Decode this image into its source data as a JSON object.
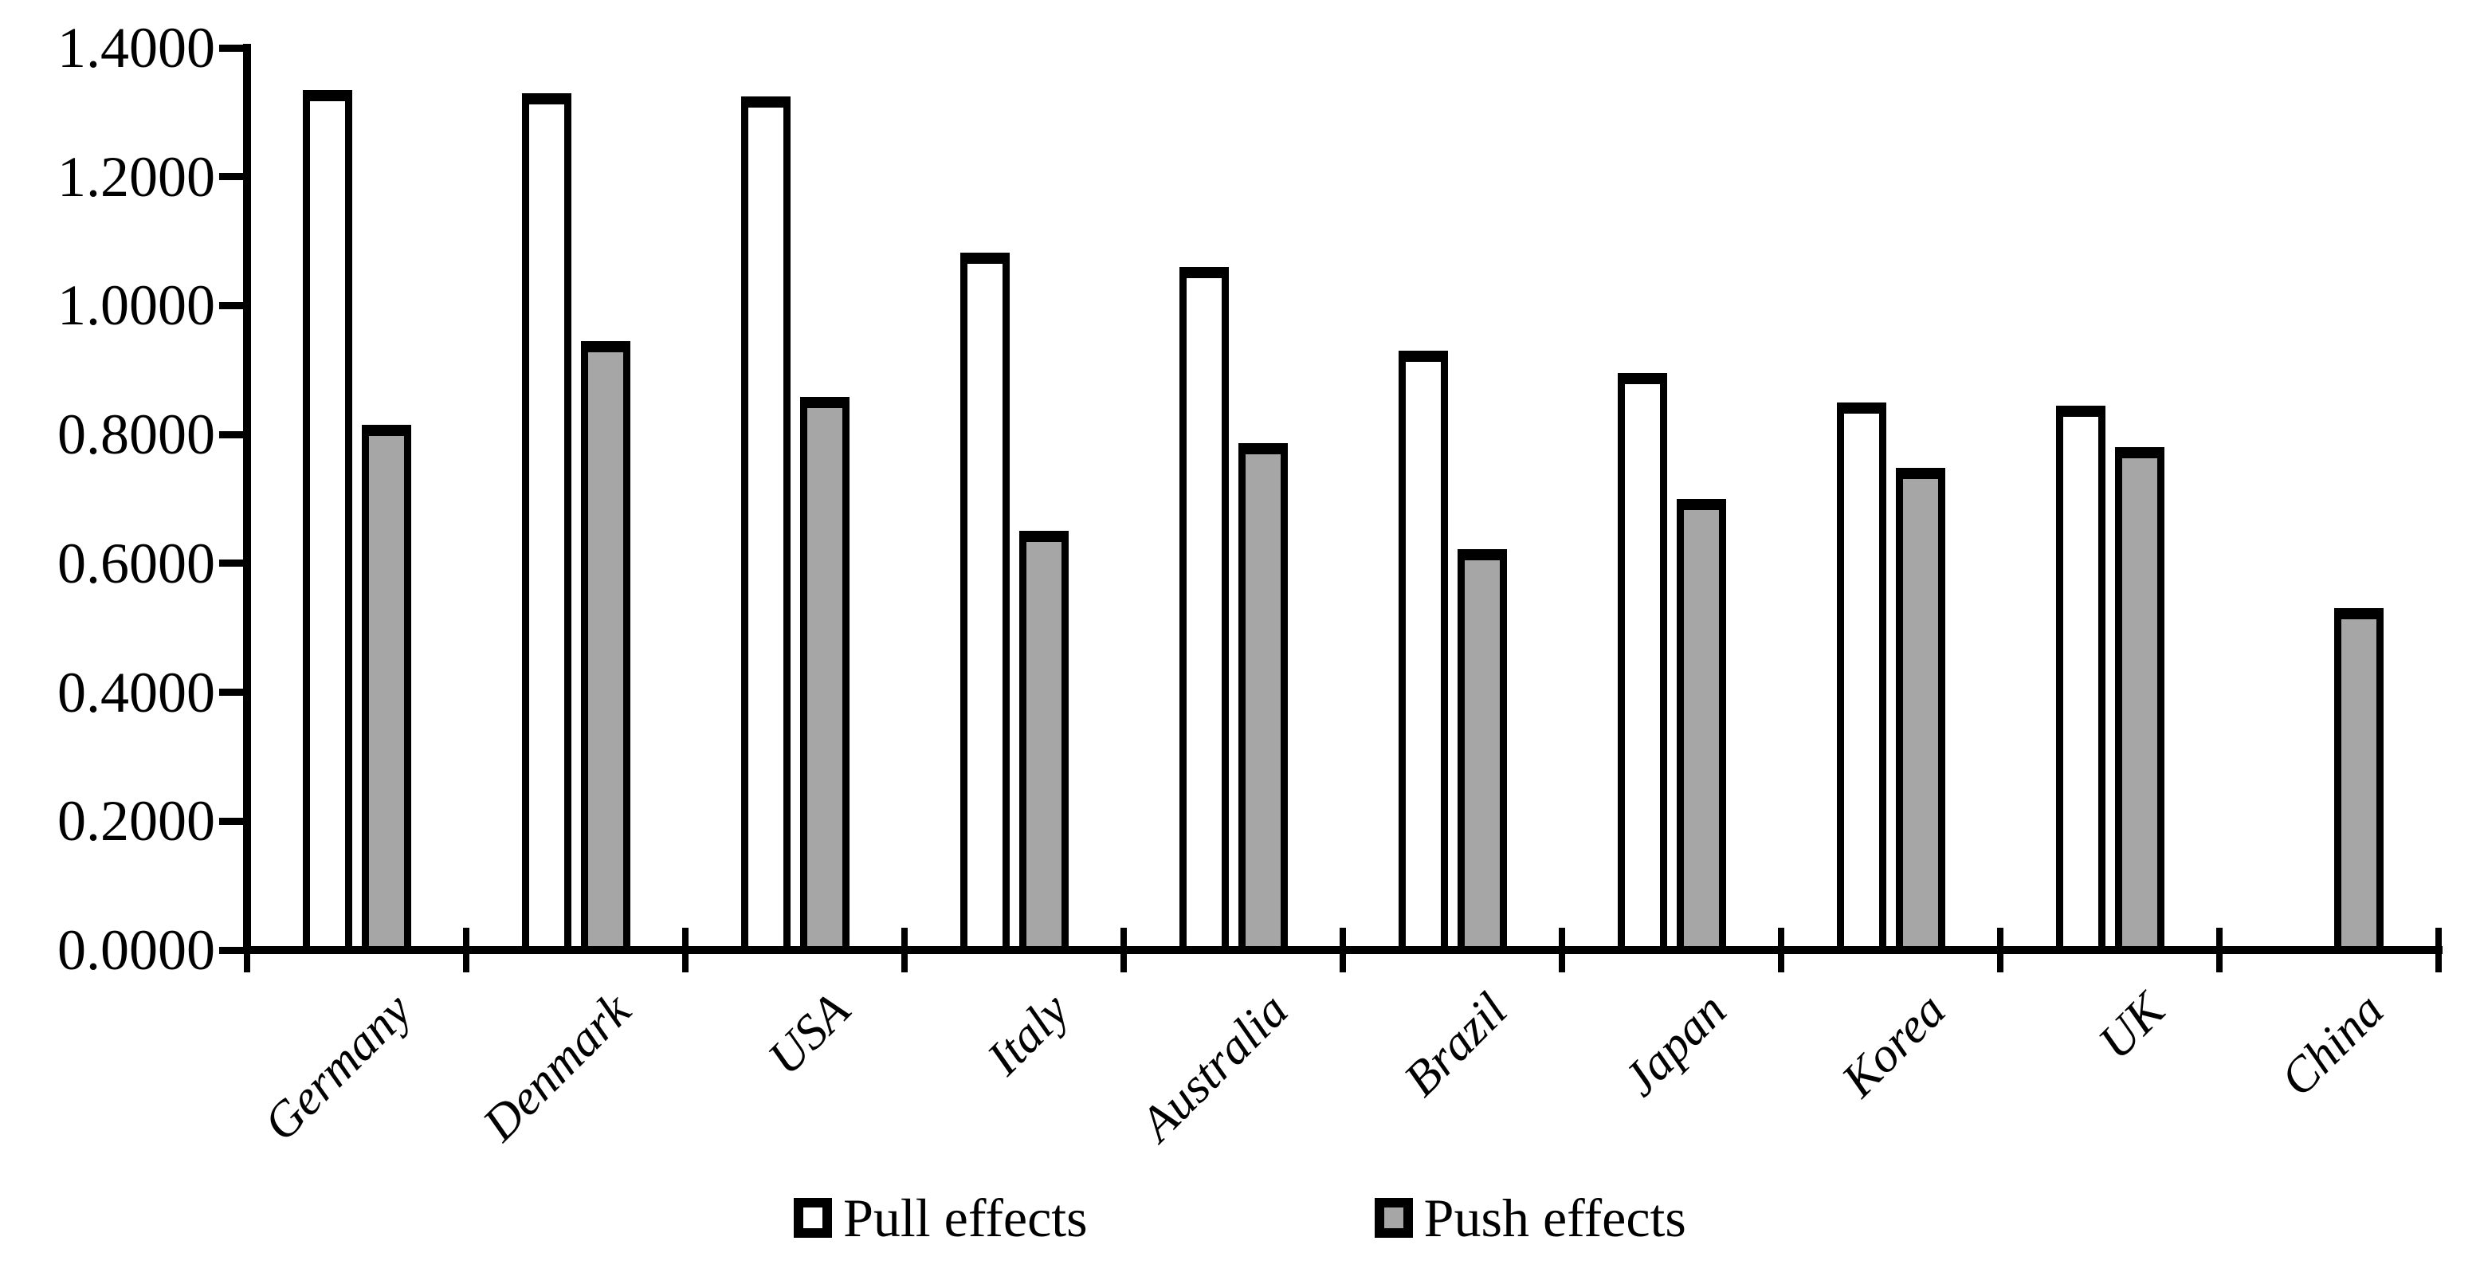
{
  "chart_data": {
    "type": "bar",
    "title": "",
    "xlabel": "",
    "ylabel": "",
    "categories": [
      "Germany",
      "Denmark",
      "USA",
      "Italy",
      "Australia",
      "Brazil",
      "Japan",
      "Korea",
      "UK",
      "China"
    ],
    "series": [
      {
        "name": "Pull effects",
        "fill": "#FFFFFF",
        "values": [
          1.335,
          1.33,
          1.325,
          1.082,
          1.06,
          0.93,
          0.896,
          0.85,
          0.845,
          0.0
        ]
      },
      {
        "name": "Push effects",
        "fill": "#A6A6A6",
        "values": [
          0.815,
          0.945,
          0.858,
          0.65,
          0.786,
          0.622,
          0.7,
          0.748,
          0.781,
          0.53
        ]
      }
    ],
    "ylim": [
      0.0,
      1.4
    ],
    "ytick_step": 0.2,
    "ytick_labels": [
      "0.0000",
      "0.2000",
      "0.4000",
      "0.6000",
      "0.8000",
      "1.0000",
      "1.2000",
      "1.4000"
    ],
    "grid": false,
    "legend_position": "bottom-center",
    "bar_border_color": "#000000",
    "axis_color": "#000000",
    "background_color": "#FFFFFF"
  }
}
